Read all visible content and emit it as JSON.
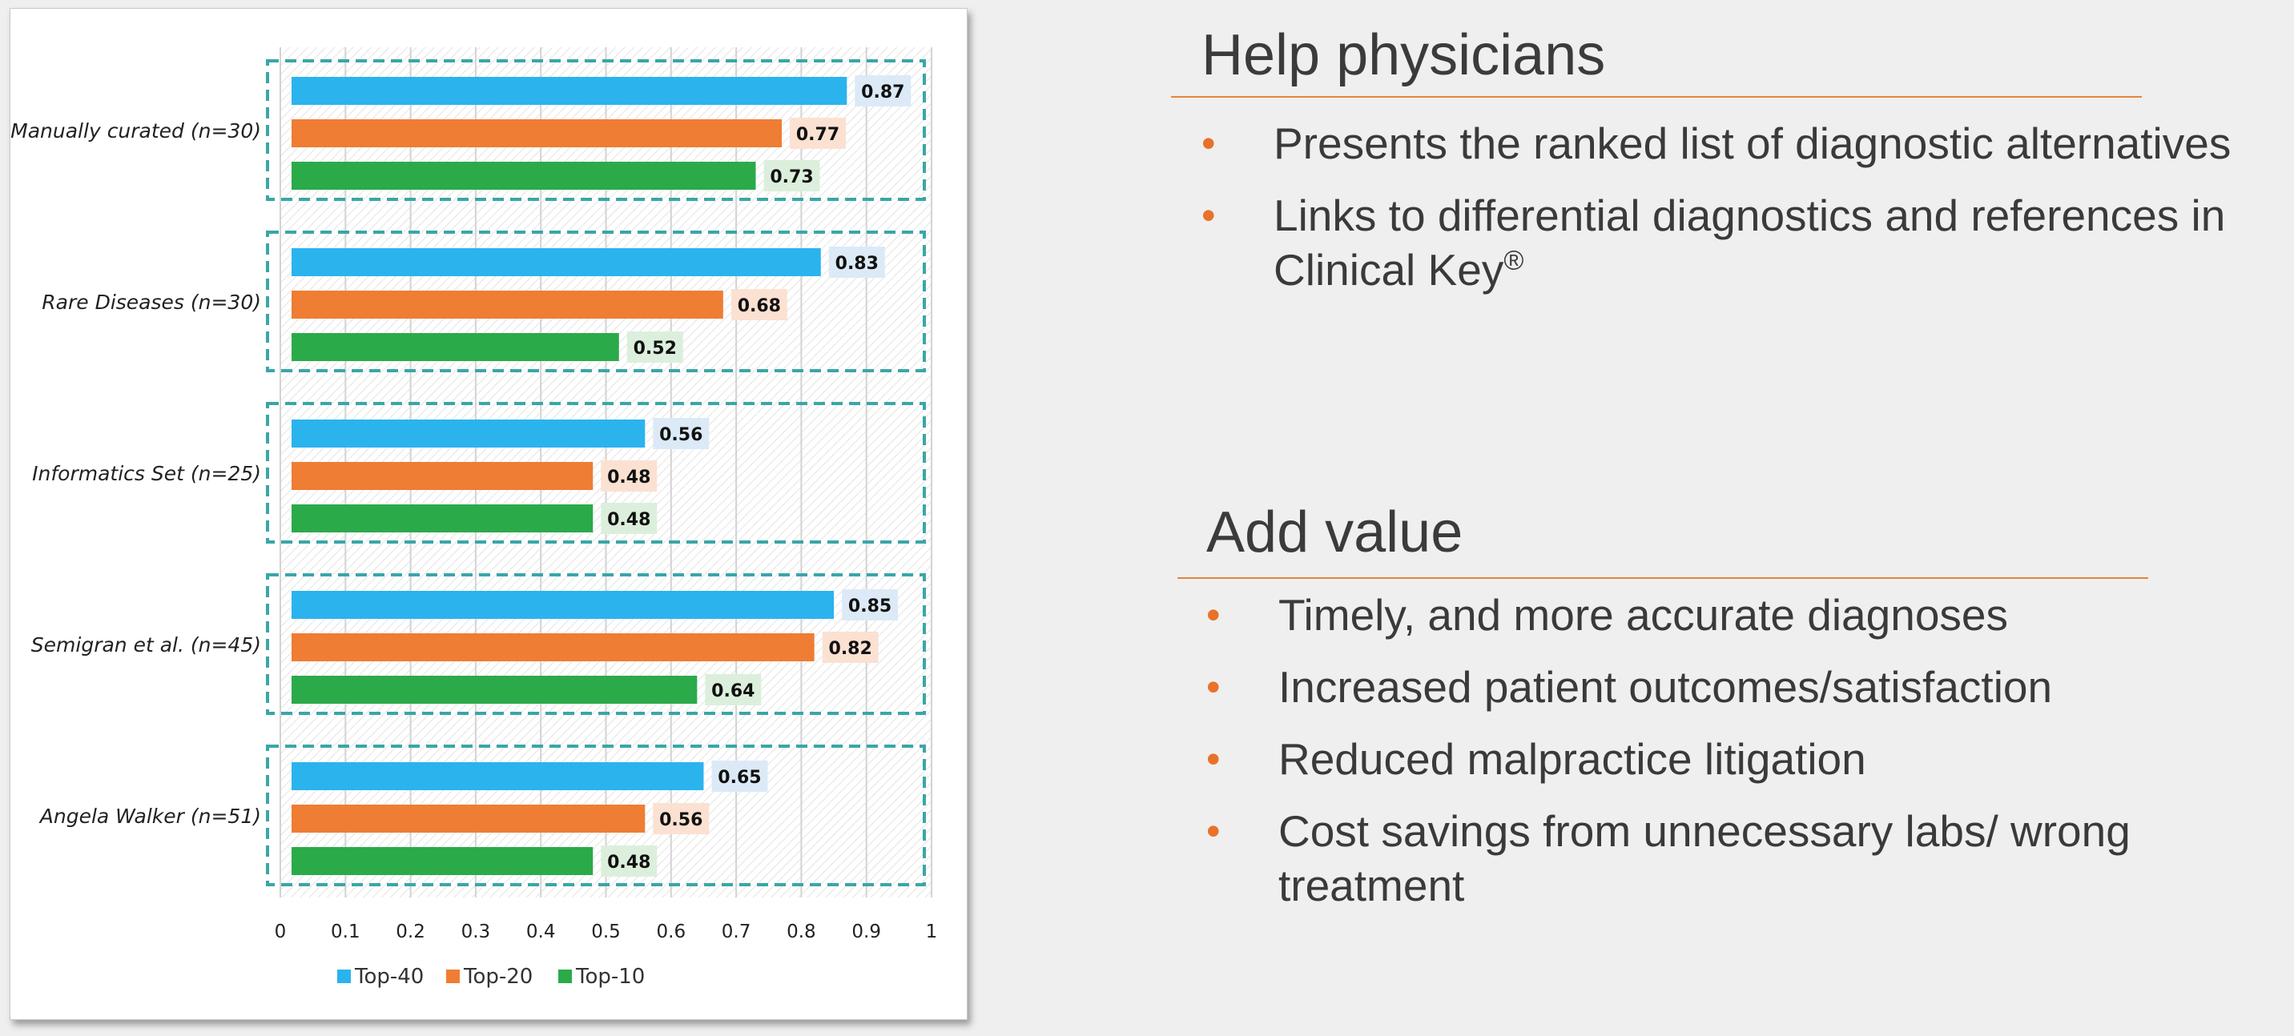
{
  "chart_data": {
    "type": "bar",
    "orientation": "horizontal",
    "categories": [
      "Manually curated (n=30)",
      "Rare Diseases (n=30)",
      "Informatics Set (n=25)",
      "Semigran et al. (n=45)",
      "Angela Walker (n=51)"
    ],
    "series": [
      {
        "name": "Top-40",
        "color": "#2bb3ee",
        "label_bg": "#dbeaf6",
        "values": [
          0.87,
          0.83,
          0.56,
          0.85,
          0.65
        ]
      },
      {
        "name": "Top-20",
        "color": "#ef7d33",
        "label_bg": "#fbe1d2",
        "values": [
          0.77,
          0.68,
          0.48,
          0.82,
          0.56
        ]
      },
      {
        "name": "Top-10",
        "color": "#2baa4a",
        "label_bg": "#dcefdc",
        "values": [
          0.73,
          0.52,
          0.48,
          0.64,
          0.48
        ]
      }
    ],
    "xlim": [
      0,
      1
    ],
    "xticks": [
      "0",
      "0.1",
      "0.2",
      "0.3",
      "0.4",
      "0.5",
      "0.6",
      "0.7",
      "0.8",
      "0.9",
      "1"
    ],
    "grid": true,
    "legend_position": "bottom",
    "group_box_color": "#3aa6a8"
  },
  "sections": [
    {
      "title": "Help physicians",
      "bullets": [
        {
          "text": "Presents the ranked list of diagnostic alternatives",
          "sup": ""
        },
        {
          "text": "Links to differential diagnostics and references in Clinical Key",
          "sup": "®"
        }
      ]
    },
    {
      "title": "Add value",
      "bullets": [
        {
          "text": "Timely, and more accurate diagnoses",
          "sup": ""
        },
        {
          "text": "Increased patient outcomes/satisfaction",
          "sup": ""
        },
        {
          "text": "Reduced malpractice litigation",
          "sup": ""
        },
        {
          "text": "Cost savings from unnecessary labs/ wrong treatment",
          "sup": ""
        }
      ]
    }
  ],
  "bullet_glyph": "•",
  "accent_color": "#e8722a"
}
